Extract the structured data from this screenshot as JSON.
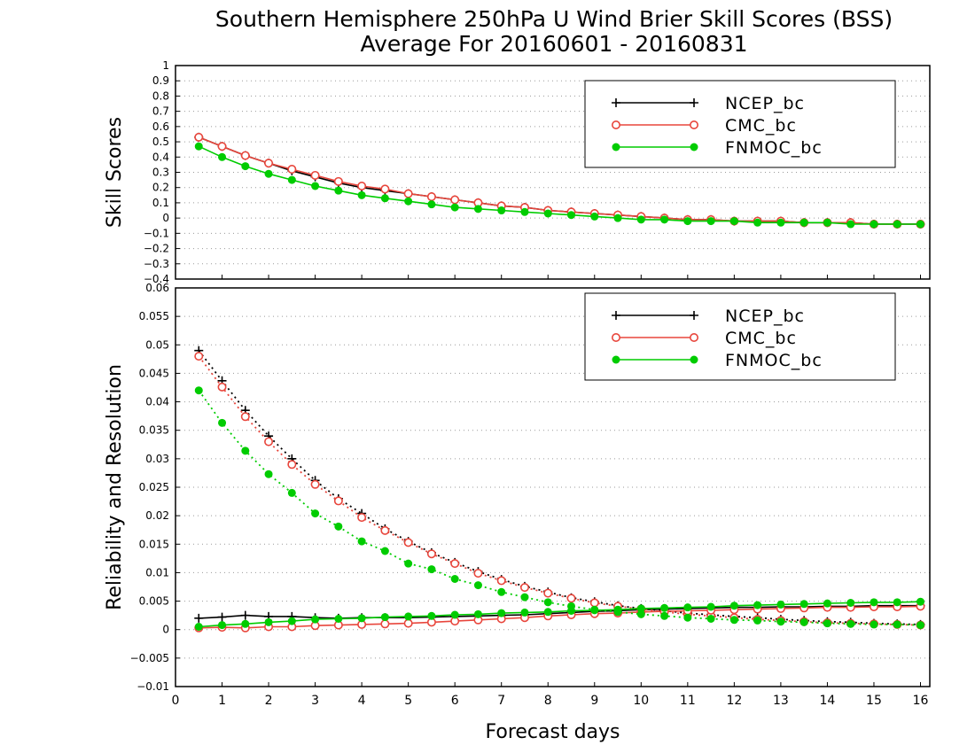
{
  "title_line1": "Southern Hemisphere 250hPa U Wind Brier Skill Scores (BSS)",
  "title_line2": "Average For 20160601 - 20160831",
  "colors": {
    "NCEP_bc": "#000000",
    "CMC_bc": "#e8463c",
    "FNMOC_bc": "#00cc00"
  },
  "chart_data": [
    {
      "type": "line",
      "ylabel": "Skill Scores",
      "xlabel": "",
      "xlim": [
        0,
        16.2
      ],
      "ylim": [
        -0.4,
        1
      ],
      "x_ticks": [
        "0",
        "1",
        "2",
        "3",
        "4",
        "5",
        "6",
        "7",
        "8",
        "9",
        "10",
        "11",
        "12",
        "13",
        "14",
        "15",
        "16"
      ],
      "y_ticks": [
        "−0.4",
        "−0.3",
        "−0.2",
        "−0.1",
        "0",
        "0.1",
        "0.2",
        "0.3",
        "0.4",
        "0.5",
        "0.6",
        "0.7",
        "0.8",
        "0.9",
        "1"
      ],
      "grid": true,
      "legend_position": "top-right",
      "x": [
        0.5,
        1,
        1.5,
        2,
        2.5,
        3,
        3.5,
        4,
        4.5,
        5,
        5.5,
        6,
        6.5,
        7,
        7.5,
        8,
        8.5,
        9,
        9.5,
        10,
        10.5,
        11,
        11.5,
        12,
        12.5,
        13,
        13.5,
        14,
        14.5,
        15,
        15.5,
        16
      ],
      "series": [
        {
          "name": "NCEP_bc",
          "marker": "plus",
          "values": [
            0.53,
            0.47,
            0.41,
            0.36,
            0.31,
            0.27,
            0.23,
            0.2,
            0.18,
            0.16,
            0.14,
            0.12,
            0.1,
            0.08,
            0.07,
            0.05,
            0.04,
            0.03,
            0.02,
            0.01,
            0.0,
            -0.01,
            -0.01,
            -0.02,
            -0.02,
            -0.02,
            -0.03,
            -0.03,
            -0.03,
            -0.04,
            -0.04,
            -0.04
          ]
        },
        {
          "name": "CMC_bc",
          "marker": "open-circle",
          "values": [
            0.53,
            0.47,
            0.41,
            0.36,
            0.32,
            0.28,
            0.24,
            0.21,
            0.19,
            0.16,
            0.14,
            0.12,
            0.1,
            0.08,
            0.07,
            0.05,
            0.04,
            0.03,
            0.02,
            0.01,
            0.0,
            -0.01,
            -0.01,
            -0.02,
            -0.02,
            -0.02,
            -0.03,
            -0.03,
            -0.03,
            -0.04,
            -0.04,
            -0.04
          ]
        },
        {
          "name": "FNMOC_bc",
          "marker": "filled-circle",
          "values": [
            0.47,
            0.4,
            0.34,
            0.29,
            0.25,
            0.21,
            0.18,
            0.15,
            0.13,
            0.11,
            0.09,
            0.07,
            0.06,
            0.05,
            0.04,
            0.03,
            0.02,
            0.01,
            0.0,
            -0.01,
            -0.01,
            -0.02,
            -0.02,
            -0.02,
            -0.03,
            -0.03,
            -0.03,
            -0.03,
            -0.04,
            -0.04,
            -0.04,
            -0.04
          ]
        }
      ]
    },
    {
      "type": "line",
      "ylabel": "Reliability and Resolution",
      "xlabel": "Forecast days",
      "xlim": [
        0,
        16.2
      ],
      "ylim": [
        -0.01,
        0.06
      ],
      "x_ticks": [
        "0",
        "1",
        "2",
        "3",
        "4",
        "5",
        "6",
        "7",
        "8",
        "9",
        "10",
        "11",
        "12",
        "13",
        "14",
        "15",
        "16"
      ],
      "y_ticks": [
        "−0.01",
        "−0.005",
        "0",
        "0.005",
        "0.01",
        "0.015",
        "0.02",
        "0.025",
        "0.03",
        "0.035",
        "0.04",
        "0.045",
        "0.05",
        "0.055",
        "0.06"
      ],
      "grid": true,
      "legend_position": "top-right",
      "x": [
        0.5,
        1,
        1.5,
        2,
        2.5,
        3,
        3.5,
        4,
        4.5,
        5,
        5.5,
        6,
        6.5,
        7,
        7.5,
        8,
        8.5,
        9,
        9.5,
        10,
        10.5,
        11,
        11.5,
        12,
        12.5,
        13,
        13.5,
        14,
        14.5,
        15,
        15.5,
        16
      ],
      "series": [
        {
          "name": "NCEP_bc",
          "kind": "reliability",
          "marker": "plus",
          "values": [
            0.049,
            0.0437,
            0.0385,
            0.034,
            0.03,
            0.0262,
            0.023,
            0.0204,
            0.0177,
            0.0155,
            0.0135,
            0.0118,
            0.0102,
            0.0088,
            0.0076,
            0.0066,
            0.0056,
            0.0049,
            0.0042,
            0.0037,
            0.0033,
            0.0029,
            0.0026,
            0.0023,
            0.0021,
            0.0018,
            0.0016,
            0.0014,
            0.0013,
            0.0011,
            0.001,
            0.0009
          ]
        },
        {
          "name": "NCEP_bc",
          "kind": "resolution",
          "marker": "plus",
          "values": [
            0.002,
            0.0022,
            0.0025,
            0.0023,
            0.0023,
            0.0021,
            0.002,
            0.0021,
            0.0021,
            0.0021,
            0.0022,
            0.0023,
            0.0024,
            0.0025,
            0.0026,
            0.0028,
            0.003,
            0.0032,
            0.0033,
            0.0035,
            0.0036,
            0.0037,
            0.0038,
            0.0039,
            0.0039,
            0.004,
            0.004,
            0.0041,
            0.0041,
            0.0042,
            0.0042,
            0.0042
          ]
        },
        {
          "name": "CMC_bc",
          "kind": "reliability",
          "marker": "open-circle",
          "values": [
            0.048,
            0.0426,
            0.0374,
            0.033,
            0.029,
            0.0255,
            0.0226,
            0.0197,
            0.0174,
            0.0153,
            0.0133,
            0.0116,
            0.0099,
            0.0086,
            0.0074,
            0.0064,
            0.0055,
            0.0047,
            0.0041,
            0.0036,
            0.0031,
            0.0027,
            0.0024,
            0.0021,
            0.0018,
            0.0016,
            0.0014,
            0.0012,
            0.0011,
            0.001,
            0.0009,
            0.0008
          ]
        },
        {
          "name": "CMC_bc",
          "kind": "resolution",
          "marker": "open-circle",
          "values": [
            0.0003,
            0.0004,
            0.0003,
            0.0005,
            0.0005,
            0.0007,
            0.0008,
            0.0009,
            0.001,
            0.0011,
            0.0013,
            0.0015,
            0.0017,
            0.0019,
            0.0021,
            0.0024,
            0.0026,
            0.0028,
            0.0029,
            0.0031,
            0.0032,
            0.0033,
            0.0034,
            0.0035,
            0.0036,
            0.0037,
            0.0038,
            0.0039,
            0.0039,
            0.004,
            0.004,
            0.0041
          ]
        },
        {
          "name": "FNMOC_bc",
          "kind": "reliability",
          "marker": "filled-circle",
          "values": [
            0.042,
            0.0363,
            0.0314,
            0.0273,
            0.024,
            0.0204,
            0.0181,
            0.0155,
            0.0138,
            0.0116,
            0.0106,
            0.0089,
            0.0078,
            0.0066,
            0.0057,
            0.0048,
            0.0041,
            0.0035,
            0.0031,
            0.0027,
            0.0024,
            0.0021,
            0.0019,
            0.0017,
            0.0016,
            0.0014,
            0.0013,
            0.0011,
            0.001,
            0.0009,
            0.0009,
            0.0008
          ]
        },
        {
          "name": "FNMOC_bc",
          "kind": "resolution",
          "marker": "filled-circle",
          "values": [
            0.0005,
            0.0008,
            0.001,
            0.0013,
            0.0015,
            0.0018,
            0.0019,
            0.002,
            0.0022,
            0.0023,
            0.0024,
            0.0026,
            0.0027,
            0.0029,
            0.003,
            0.0031,
            0.0033,
            0.0034,
            0.0035,
            0.0037,
            0.0038,
            0.0039,
            0.004,
            0.0042,
            0.0043,
            0.0044,
            0.0045,
            0.0046,
            0.0047,
            0.0048,
            0.0048,
            0.0049
          ]
        }
      ]
    }
  ]
}
